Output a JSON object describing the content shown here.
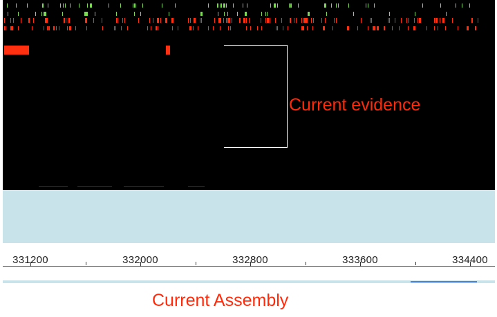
{
  "annotations": {
    "evidence_label": "Current evidence",
    "assembly_label": "Current Assembly"
  },
  "ruler": {
    "labels": [
      "331200",
      "332000",
      "332800",
      "333600",
      "334400"
    ]
  },
  "colors": {
    "evidence_background": "#000000",
    "evidence_feature": "#ff3010",
    "green_feature": "#7ed957",
    "assembly_background": "#c8e4ea",
    "annotation_text": "#ff2a0a",
    "selection_bar": "#4a7fe0"
  }
}
